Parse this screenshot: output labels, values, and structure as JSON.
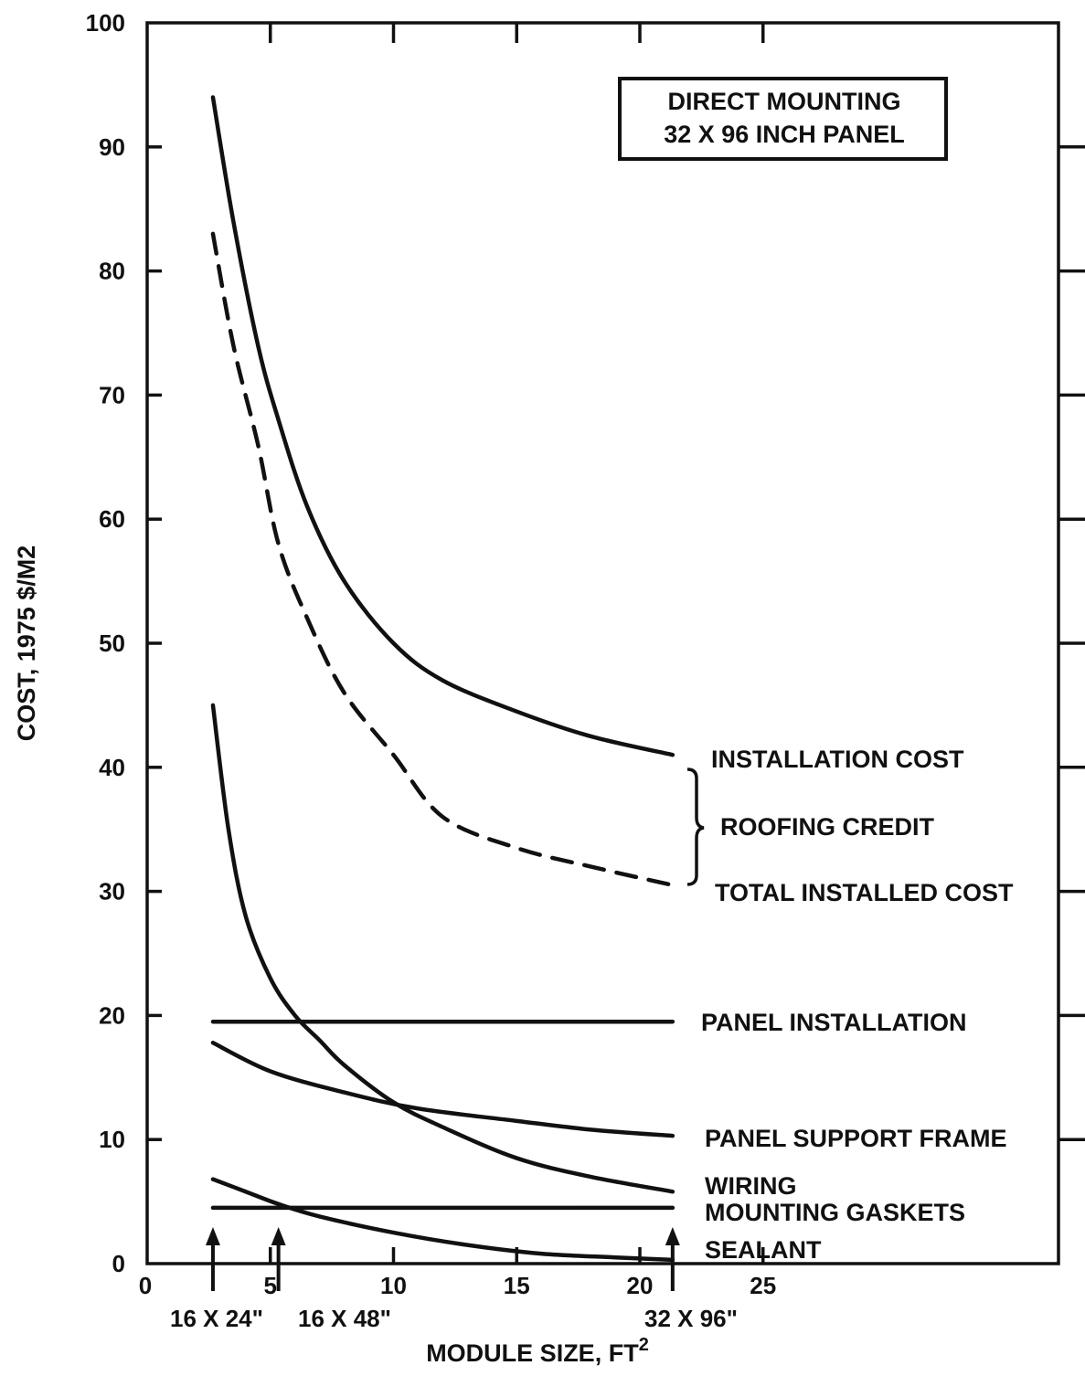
{
  "chart_data": {
    "type": "line",
    "title": "",
    "xlabel": "MODULE SIZE, FT",
    "xlabel_superscript": "2",
    "ylabel": "COST, 1975 $/M2",
    "xlim": [
      0,
      37
    ],
    "ylim": [
      0,
      100
    ],
    "x_ticks": [
      "0",
      "5",
      "10",
      "15",
      "20",
      "25"
    ],
    "y_ticks": [
      "0",
      "10",
      "20",
      "30",
      "40",
      "50",
      "60",
      "70",
      "80",
      "90",
      "100"
    ],
    "grid": false,
    "annotation_box": {
      "line1": "DIRECT MOUNTING",
      "line2": "32 X 96 INCH PANEL"
    },
    "module_markers": [
      {
        "x": 2.67,
        "label": "16 X 24\""
      },
      {
        "x": 5.33,
        "label": "16 X 48\""
      },
      {
        "x": 21.33,
        "label": "32 X 96\""
      }
    ],
    "roofing_credit_label": "ROOFING CREDIT",
    "series": [
      {
        "name": "INSTALLATION COST",
        "style": "solid",
        "x": [
          2.67,
          3.5,
          4.5,
          5.33,
          6.5,
          8,
          10,
          12,
          15,
          18,
          21.33
        ],
        "y": [
          94,
          84,
          74,
          68,
          61,
          55,
          50,
          47,
          44.5,
          42.5,
          41
        ]
      },
      {
        "name": "TOTAL INSTALLED COST",
        "style": "dashed",
        "x": [
          2.67,
          3.5,
          4.5,
          5.33,
          6.5,
          8,
          10,
          12,
          15,
          18,
          21.33
        ],
        "y": [
          83,
          74,
          66,
          58,
          52,
          46,
          41,
          36,
          33.5,
          32,
          30.5
        ]
      },
      {
        "name": "PANEL INSTALLATION",
        "style": "solid",
        "x": [
          2.67,
          21.33
        ],
        "y": [
          19.5,
          19.5
        ]
      },
      {
        "name": "PANEL SUPPORT FRAME",
        "style": "solid",
        "x": [
          2.67,
          5,
          8,
          11,
          15,
          18,
          21.33
        ],
        "y": [
          17.8,
          15.5,
          13.8,
          12.5,
          11.5,
          10.8,
          10.3
        ]
      },
      {
        "name": "WIRING",
        "style": "solid",
        "x": [
          2.67,
          3.3,
          4,
          5,
          6,
          7,
          8,
          10,
          12,
          15,
          18,
          21.33
        ],
        "y": [
          45,
          35,
          28,
          23,
          20,
          18,
          16,
          13,
          11,
          8.5,
          7,
          5.8
        ]
      },
      {
        "name": "MOUNTING GASKETS",
        "style": "solid",
        "x": [
          2.67,
          21.33
        ],
        "y": [
          4.5,
          4.5
        ]
      },
      {
        "name": "SEALANT",
        "style": "solid",
        "x": [
          2.67,
          4,
          5.33,
          7,
          10,
          13,
          16,
          19,
          21.33
        ],
        "y": [
          6.8,
          5.8,
          4.8,
          3.8,
          2.5,
          1.5,
          0.8,
          0.5,
          0.3
        ]
      }
    ]
  }
}
